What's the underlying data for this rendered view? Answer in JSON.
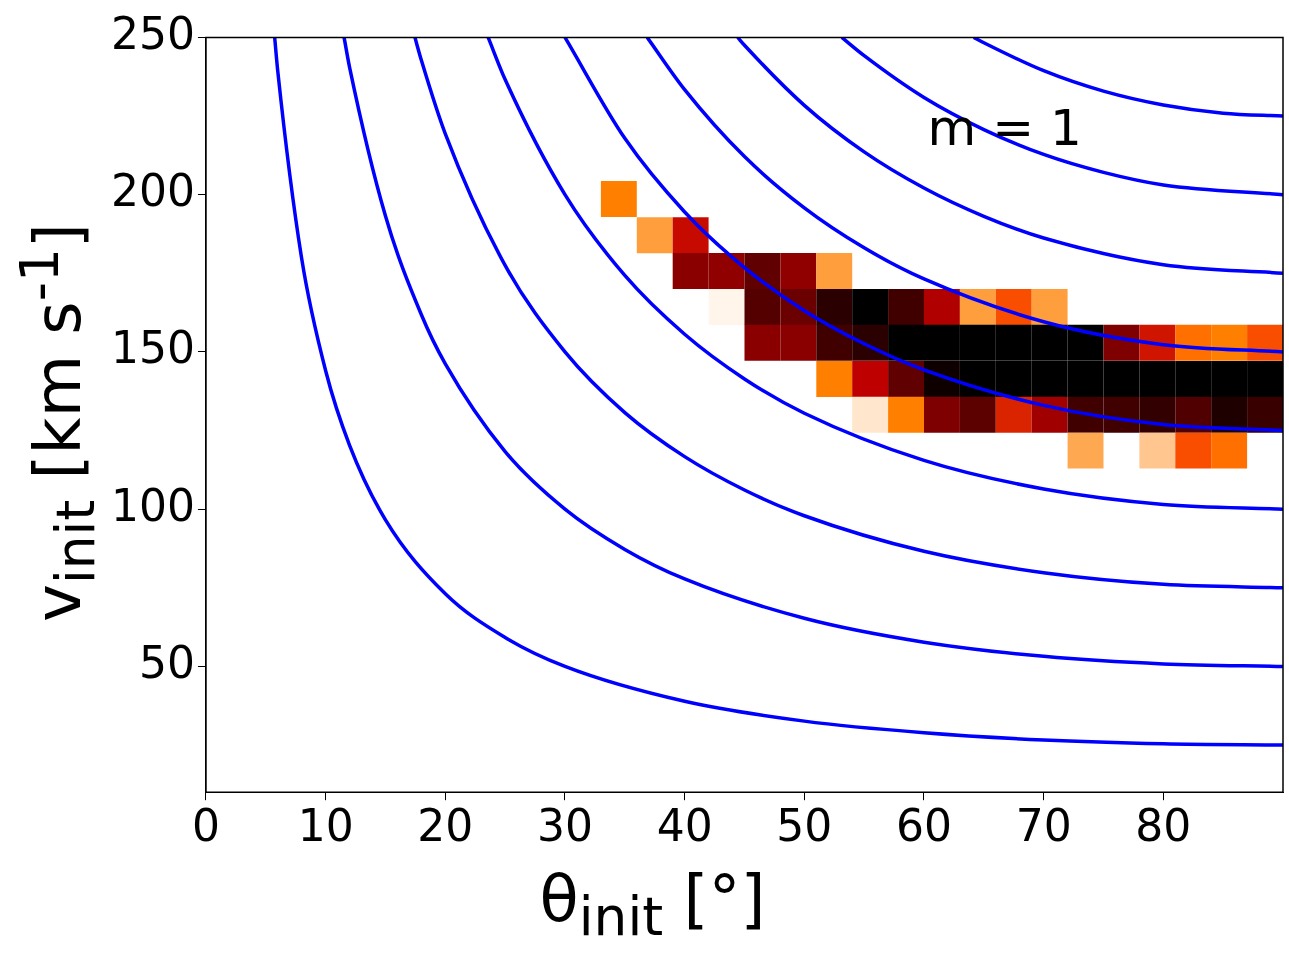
{
  "chart_data": {
    "type": "line",
    "xlabel": "θ$_{init}$ [°]",
    "ylabel": "v$_{init}$ [km s$^{-1}$]",
    "annotations": [
      "m = 1"
    ],
    "xlim": [
      0,
      90
    ],
    "ylim": [
      10,
      250
    ],
    "xticks": [
      0,
      10,
      20,
      30,
      40,
      50,
      60,
      70,
      80
    ],
    "yticks": [
      50,
      100,
      150,
      200,
      250
    ],
    "grid": false,
    "legend": false,
    "series": [
      {
        "type": "scatter",
        "marker": "square",
        "x": [
          34.5,
          37.5,
          40.5,
          40.5,
          43.5,
          46.5,
          49.5,
          52.5,
          43.5,
          46.5,
          49.5,
          52.5,
          55.5,
          58.5,
          61.5,
          64.5,
          67.5,
          70.5,
          46.5,
          49.5,
          52.5,
          55.5,
          58.5,
          61.5,
          64.5,
          67.5,
          70.5,
          73.5,
          76.5,
          79.5,
          82.5,
          85.5,
          88.5,
          52.5,
          55.5,
          58.5,
          61.5,
          64.5,
          67.5,
          70.5,
          73.5,
          76.5,
          79.5,
          82.5,
          85.5,
          88.5,
          55.5,
          58.5,
          61.5,
          64.5,
          67.5,
          70.5,
          73.5,
          76.5,
          79.5,
          82.5,
          85.5,
          88.5,
          73.5,
          79.5,
          82.5,
          85.5
        ],
        "values": [
          198.6,
          187.1,
          187.1,
          175.7,
          175.7,
          175.7,
          175.7,
          175.7,
          164.3,
          164.3,
          164.3,
          164.3,
          164.3,
          164.3,
          164.3,
          164.3,
          164.3,
          164.3,
          152.9,
          152.9,
          152.9,
          152.9,
          152.9,
          152.9,
          152.9,
          152.9,
          152.9,
          152.9,
          152.9,
          152.9,
          152.9,
          152.9,
          152.9,
          141.4,
          141.4,
          141.4,
          141.4,
          141.4,
          141.4,
          141.4,
          141.4,
          141.4,
          141.4,
          141.4,
          141.4,
          141.4,
          130,
          130,
          130,
          130,
          130,
          130,
          130,
          130,
          130,
          130,
          130,
          130,
          118.6,
          118.6,
          118.6,
          118.6
        ],
        "colors": [
          "#ff8000",
          "#ff9e3d",
          "#c70a00",
          "#8a0000",
          "#910000",
          "#600000",
          "#910000",
          "#ff9e3d",
          "#fff5eb",
          "#540000",
          "#6b0000",
          "#2a0000",
          "#000000",
          "#410000",
          "#b00000",
          "#ff9e3d",
          "#f94d00",
          "#ff9e3d",
          "#8a0000",
          "#8a0000",
          "#410000",
          "#2a0000",
          "#000000",
          "#000000",
          "#000000",
          "#000000",
          "#000000",
          "#000000",
          "#7e0000",
          "#cf1400",
          "#ff7000",
          "#ff8000",
          "#f94d00",
          "#ff8000",
          "#bf0000",
          "#600000",
          "#0f0000",
          "#000000",
          "#000000",
          "#000000",
          "#000000",
          "#000000",
          "#000000",
          "#000000",
          "#000000",
          "#000000",
          "#ffe6cc",
          "#ff8000",
          "#7e0000",
          "#5c0000",
          "#da2400",
          "#a10000",
          "#410000",
          "#410000",
          "#320000",
          "#500000",
          "#1f0000",
          "#390000",
          "#ffa852",
          "#ffc78f",
          "#f94d00",
          "#ff7000"
        ]
      },
      {
        "color": "#0000ff",
        "x": [
          5.74,
          6,
          8,
          10,
          12,
          15,
          20,
          25,
          30,
          40,
          50,
          60,
          70,
          80,
          90
        ],
        "values": [
          250,
          239.2,
          179.6,
          144,
          120.3,
          96.6,
          73.1,
          59.2,
          50,
          38.9,
          32.6,
          28.9,
          26.6,
          25.4,
          25
        ]
      },
      {
        "color": "#0000ff",
        "x": [
          11.54,
          12,
          15,
          18,
          20,
          25,
          30,
          35,
          40,
          50,
          60,
          70,
          80,
          90
        ],
        "values": [
          250,
          240.5,
          193.2,
          161.8,
          146.2,
          118.3,
          100,
          87.2,
          77.8,
          65.3,
          57.7,
          53.2,
          50.8,
          50
        ]
      },
      {
        "color": "#0000ff",
        "x": [
          17.46,
          18,
          20,
          25,
          30,
          35,
          40,
          45,
          50,
          60,
          70,
          80,
          90
        ],
        "values": [
          250,
          242.7,
          219.3,
          177.5,
          150,
          130.7,
          116.7,
          106.1,
          97.9,
          86.6,
          79.8,
          76.1,
          75
        ]
      },
      {
        "color": "#0000ff",
        "x": [
          23.58,
          25,
          30,
          35,
          40,
          45,
          50,
          60,
          70,
          80,
          90
        ],
        "values": [
          250,
          236.6,
          200,
          174.3,
          155.6,
          141.4,
          130.5,
          115.5,
          106.4,
          101.5,
          100
        ]
      },
      {
        "color": "#0000ff",
        "x": [
          30,
          35,
          40,
          45,
          50,
          55,
          60,
          70,
          80,
          90
        ],
        "values": [
          250,
          217.9,
          194.5,
          176.8,
          163.1,
          152.6,
          144.3,
          133,
          126.9,
          125
        ]
      },
      {
        "color": "#0000ff",
        "x": [
          36.87,
          40,
          45,
          50,
          55,
          60,
          70,
          80,
          90
        ],
        "values": [
          250,
          233.4,
          212.1,
          195.8,
          183.1,
          173.2,
          159.6,
          152.3,
          150
        ]
      },
      {
        "color": "#0000ff",
        "x": [
          44.43,
          45,
          50,
          55,
          60,
          65,
          70,
          80,
          90
        ],
        "values": [
          250,
          247.5,
          228.4,
          213.6,
          202.1,
          193.1,
          186.2,
          177.7,
          175
        ]
      },
      {
        "color": "#0000ff",
        "x": [
          53.13,
          55,
          60,
          65,
          70,
          75,
          80,
          90
        ],
        "values": [
          250,
          244.2,
          230.9,
          220.7,
          212.8,
          207.1,
          203.1,
          200
        ]
      },
      {
        "color": "#0000ff",
        "x": [
          64.16,
          65,
          70,
          75,
          80,
          85,
          90
        ],
        "values": [
          250,
          248.3,
          239.4,
          232.9,
          228.5,
          225.9,
          225
        ]
      }
    ]
  }
}
